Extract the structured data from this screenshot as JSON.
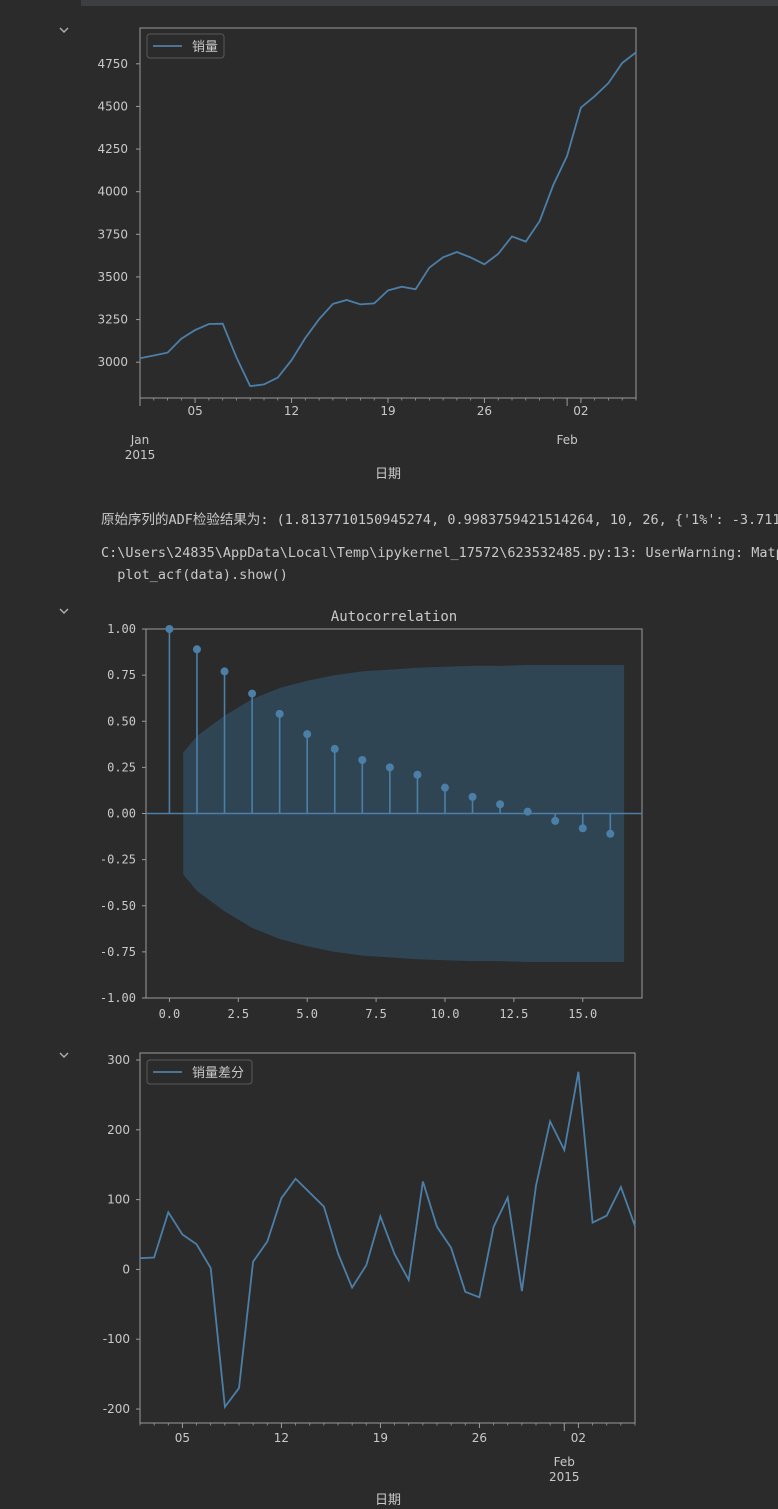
{
  "output": {
    "adf_line": "原始序列的ADF检验结果为: (1.8137710150945274, 0.9983759421514264, 10, 26, {'1%': -3.711",
    "warning_line1": "C:\\Users\\24835\\AppData\\Local\\Temp\\ipykernel_17572\\623532485.py:13: UserWarning: Matpl",
    "warning_line2": "  plot_acf(data).show()"
  },
  "colors": {
    "background": "#2b2b2b",
    "line": "#4c7fa8",
    "confidence_band": "#2f4554",
    "text": "#c9c9c9",
    "axis": "#9a9a9a"
  },
  "icons": {
    "collapse": "chevron-down-icon"
  },
  "chart_data": [
    {
      "type": "line",
      "title": "",
      "xlabel": "日期",
      "ylabel": "",
      "legend": [
        "销量"
      ],
      "legend_position": "top-left",
      "x_tick_labels": [
        "05",
        "12",
        "19",
        "26",
        "02"
      ],
      "x_major_labels": [
        [
          "Jan",
          "2015"
        ],
        [
          "Feb",
          ""
        ]
      ],
      "y_tick_labels": [
        "3000",
        "3250",
        "3500",
        "3750",
        "4000",
        "4250",
        "4500",
        "4750"
      ],
      "ylim": [
        2790,
        4960
      ],
      "series": [
        {
          "name": "销量",
          "x": [
            "2015-01-01",
            "2015-01-02",
            "2015-01-03",
            "2015-01-04",
            "2015-01-05",
            "2015-01-06",
            "2015-01-07",
            "2015-01-08",
            "2015-01-09",
            "2015-01-10",
            "2015-01-11",
            "2015-01-12",
            "2015-01-13",
            "2015-01-14",
            "2015-01-15",
            "2015-01-16",
            "2015-01-17",
            "2015-01-18",
            "2015-01-19",
            "2015-01-20",
            "2015-01-21",
            "2015-01-22",
            "2015-01-23",
            "2015-01-24",
            "2015-01-25",
            "2015-01-26",
            "2015-01-27",
            "2015-01-28",
            "2015-01-29",
            "2015-01-30",
            "2015-01-31",
            "2015-02-01",
            "2015-02-02",
            "2015-02-03",
            "2015-02-04",
            "2015-02-05",
            "2015-02-06"
          ],
          "values": [
            3023,
            3039,
            3056,
            3138,
            3188,
            3224,
            3226,
            3029,
            2859,
            2870,
            2910,
            3012,
            3142,
            3252,
            3342,
            3365,
            3339,
            3345,
            3421,
            3443,
            3428,
            3554,
            3615,
            3646,
            3614,
            3574,
            3635,
            3738,
            3707,
            3827,
            4039,
            4210,
            4493,
            4560,
            4637,
            4755,
            4817
          ]
        }
      ]
    },
    {
      "type": "stem",
      "title": "Autocorrelation",
      "xlabel": "",
      "ylabel": "",
      "x_tick_labels": [
        "0.0",
        "2.5",
        "5.0",
        "7.5",
        "10.0",
        "12.5",
        "15.0"
      ],
      "y_tick_labels": [
        "1.00",
        "0.75",
        "0.50",
        "0.25",
        "0.00",
        "-0.25",
        "-0.50",
        "-0.75",
        "-1.00"
      ],
      "xlim": [
        -0.85,
        17.15
      ],
      "ylim": [
        -1.0,
        1.0
      ],
      "lags": [
        0,
        1,
        2,
        3,
        4,
        5,
        6,
        7,
        8,
        9,
        10,
        11,
        12,
        13,
        14,
        15,
        16
      ],
      "values": [
        1.0,
        0.89,
        0.77,
        0.65,
        0.54,
        0.43,
        0.35,
        0.29,
        0.25,
        0.21,
        0.14,
        0.09,
        0.05,
        0.01,
        -0.04,
        -0.08,
        -0.11
      ],
      "confidence_lags": [
        0.5,
        1,
        2,
        3,
        4,
        5,
        6,
        7,
        8,
        9,
        10,
        11,
        12,
        13,
        14,
        15,
        16,
        16.5
      ],
      "confidence_upper": [
        0.33,
        0.42,
        0.53,
        0.62,
        0.68,
        0.72,
        0.75,
        0.77,
        0.78,
        0.79,
        0.795,
        0.8,
        0.8,
        0.805,
        0.805,
        0.805,
        0.805,
        0.805
      ],
      "confidence_lower": [
        -0.33,
        -0.42,
        -0.53,
        -0.62,
        -0.68,
        -0.72,
        -0.75,
        -0.77,
        -0.78,
        -0.79,
        -0.795,
        -0.8,
        -0.8,
        -0.805,
        -0.805,
        -0.805,
        -0.805,
        -0.805
      ]
    },
    {
      "type": "line",
      "title": "",
      "xlabel": "日期",
      "ylabel": "",
      "legend": [
        "销量差分"
      ],
      "legend_position": "top-left",
      "x_tick_labels": [
        "05",
        "12",
        "19",
        "26",
        "02"
      ],
      "x_major_labels": [
        [
          "Feb",
          "2015"
        ]
      ],
      "y_tick_labels": [
        "300",
        "200",
        "100",
        "0",
        "-100",
        "-200"
      ],
      "ylim": [
        -220,
        310
      ],
      "series": [
        {
          "name": "销量差分",
          "x": [
            "2015-01-02",
            "2015-01-03",
            "2015-01-04",
            "2015-01-05",
            "2015-01-06",
            "2015-01-07",
            "2015-01-08",
            "2015-01-09",
            "2015-01-10",
            "2015-01-11",
            "2015-01-12",
            "2015-01-13",
            "2015-01-14",
            "2015-01-15",
            "2015-01-16",
            "2015-01-17",
            "2015-01-18",
            "2015-01-19",
            "2015-01-20",
            "2015-01-21",
            "2015-01-22",
            "2015-01-23",
            "2015-01-24",
            "2015-01-25",
            "2015-01-26",
            "2015-01-27",
            "2015-01-28",
            "2015-01-29",
            "2015-01-30",
            "2015-01-31",
            "2015-02-01",
            "2015-02-02",
            "2015-02-03",
            "2015-02-04",
            "2015-02-05",
            "2015-02-06"
          ],
          "values": [
            16,
            17,
            82,
            50,
            36,
            2,
            -197,
            -170,
            11,
            40,
            102,
            130,
            110,
            90,
            23,
            -26,
            6,
            76,
            22,
            -15,
            126,
            61,
            31,
            -32,
            -40,
            61,
            103,
            -31,
            120,
            212,
            171,
            283,
            67,
            77,
            118,
            62
          ]
        }
      ]
    }
  ]
}
